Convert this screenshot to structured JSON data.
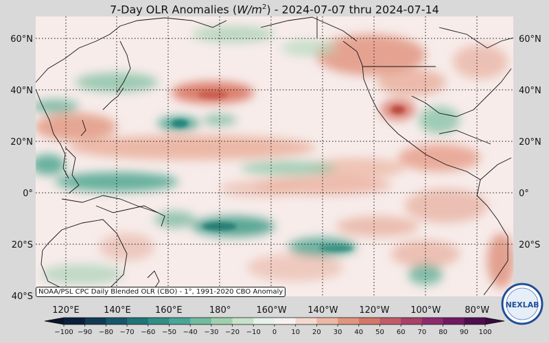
{
  "title_parts": {
    "prefix": "7-Day OLR Anomalies (",
    "unit_base": "W/m",
    "unit_exp": "2",
    "suffix": ") - 2024-07-07 thru 2024-07-14"
  },
  "lat_labels": [
    {
      "text": "60°N",
      "lat": 60
    },
    {
      "text": "40°N",
      "lat": 40
    },
    {
      "text": "20°N",
      "lat": 20
    },
    {
      "text": "0°",
      "lat": 0
    },
    {
      "text": "20°S",
      "lat": -20
    },
    {
      "text": "40°S",
      "lat": -40
    }
  ],
  "lon_labels": [
    {
      "text": "120°E",
      "lon": 120
    },
    {
      "text": "140°E",
      "lon": 140
    },
    {
      "text": "160°E",
      "lon": 160
    },
    {
      "text": "180°",
      "lon": 180
    },
    {
      "text": "160°W",
      "lon": 200
    },
    {
      "text": "140°W",
      "lon": 220
    },
    {
      "text": "120°W",
      "lon": 240
    },
    {
      "text": "100°W",
      "lon": 260
    },
    {
      "text": "80°W",
      "lon": 280
    }
  ],
  "extent": {
    "lon_min": 100,
    "lon_max": 295,
    "lat_min": -40,
    "lat_max": 68
  },
  "colorbar": {
    "ticks": [
      "−100",
      "−90",
      "−80",
      "−70",
      "−60",
      "−50",
      "−40",
      "−30",
      "−20",
      "−10",
      "0",
      "10",
      "20",
      "30",
      "40",
      "50",
      "60",
      "70",
      "80",
      "90",
      "100"
    ],
    "colors": [
      "#0b1e3b",
      "#123a55",
      "#17566b",
      "#1f7478",
      "#2f8f85",
      "#4aa596",
      "#73bb9f",
      "#9fd0ae",
      "#c6e2c8",
      "#e6f2ea",
      "#f7f2f0",
      "#f4d9cf",
      "#ecb8a5",
      "#e0957f",
      "#d2786a",
      "#c15c67",
      "#a9406a",
      "#8e2a6e",
      "#6f1a63",
      "#4e0f4e"
    ]
  },
  "source_note": "NOAA/PSL CPC Daily Blended OLR (CBO) - 1°, 1991-2020 CBO Anomaly",
  "logo": {
    "text": "NEXLAB",
    "ring_color": "#1f4e9a"
  },
  "colors": {
    "background": "#d9d9d9",
    "map_base": "#f7ecea"
  }
}
